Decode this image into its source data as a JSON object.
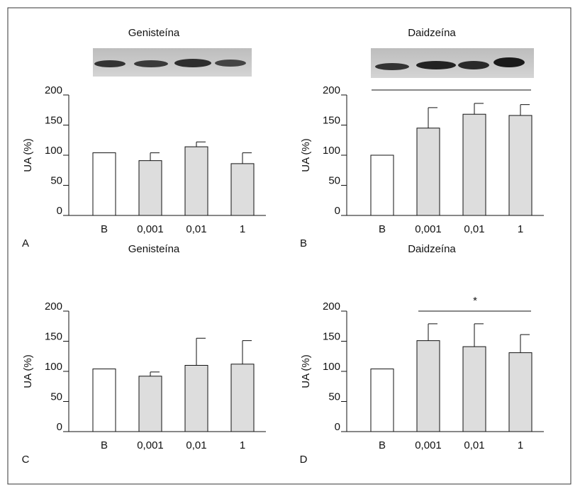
{
  "chart_data": [
    {
      "type": "bar",
      "panel": "A",
      "title": "Genisteína",
      "y_label": "UA (%)",
      "categories": [
        "B",
        "0,001",
        "0,01",
        "1"
      ],
      "values": [
        104,
        91,
        114,
        86
      ],
      "errors": [
        null,
        13,
        8,
        18
      ],
      "colors": [
        "#ffffff",
        "#dddddd",
        "#dddddd",
        "#dddddd"
      ],
      "ylim": [
        0,
        200
      ],
      "yticks": [
        0,
        50,
        100,
        150,
        200
      ]
    },
    {
      "type": "bar",
      "panel": "B",
      "title": "Daidzeína",
      "y_label": "UA (%)",
      "categories": [
        "B",
        "0,001",
        "0,01",
        "1"
      ],
      "values": [
        100,
        145,
        168,
        166
      ],
      "errors": [
        null,
        34,
        18,
        18
      ],
      "colors": [
        "#ffffff",
        "#dddddd",
        "#dddddd",
        "#dddddd"
      ],
      "ylim": [
        0,
        200
      ],
      "yticks": [
        0,
        50,
        100,
        150,
        200
      ]
    },
    {
      "type": "bar",
      "panel": "C",
      "title": "Genisteína",
      "y_label": "UA (%)",
      "categories": [
        "B",
        "0,001",
        "0,01",
        "1"
      ],
      "values": [
        104,
        92,
        110,
        112
      ],
      "errors": [
        null,
        7,
        45,
        39
      ],
      "colors": [
        "#ffffff",
        "#dddddd",
        "#dddddd",
        "#dddddd"
      ],
      "ylim": [
        0,
        200
      ],
      "yticks": [
        0,
        50,
        100,
        150,
        200
      ]
    },
    {
      "type": "bar",
      "panel": "D",
      "title": "Daidzeína",
      "y_label": "UA (%)",
      "annotation": "*",
      "categories": [
        "B",
        "0,001",
        "0,01",
        "1"
      ],
      "values": [
        104,
        151,
        141,
        131
      ],
      "errors": [
        null,
        28,
        38,
        30
      ],
      "colors": [
        "#ffffff",
        "#dddddd",
        "#dddddd",
        "#dddddd"
      ],
      "ylim": [
        0,
        200
      ],
      "yticks": [
        0,
        50,
        100,
        150,
        200
      ]
    }
  ]
}
